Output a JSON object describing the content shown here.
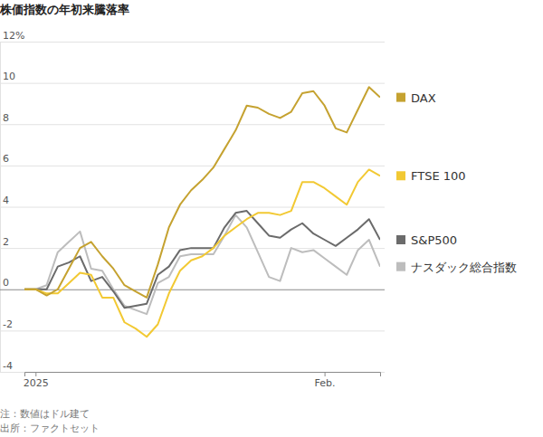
{
  "chart_data": {
    "type": "line",
    "title": "株価指数の年初来騰落率",
    "note": "注：数値はドル建て",
    "source": "出所：ファクトセット",
    "categories": [
      null,
      "2025",
      null,
      null,
      null,
      null,
      null,
      null,
      null,
      null,
      null,
      null,
      null,
      null,
      null,
      null,
      null,
      null,
      null,
      null,
      null,
      null,
      null,
      null,
      null,
      null,
      null,
      "Feb.",
      null,
      null,
      null,
      null,
      null
    ],
    "series": [
      {
        "name": "DAX",
        "color": "#c5a230",
        "values": [
          0,
          0,
          -0.3,
          0.0,
          1.0,
          2.0,
          2.3,
          1.6,
          1.0,
          0.2,
          -0.1,
          -0.4,
          1.2,
          3.0,
          4.1,
          4.8,
          5.3,
          5.9,
          6.8,
          7.7,
          8.9,
          8.8,
          8.5,
          8.3,
          8.6,
          9.5,
          9.6,
          8.9,
          7.8,
          7.6,
          8.7,
          9.8,
          9.3
        ]
      },
      {
        "name": "FTSE 100",
        "color": "#f2c933",
        "values": [
          0,
          0,
          -0.2,
          -0.2,
          0.3,
          0.8,
          0.7,
          -0.4,
          -0.4,
          -1.6,
          -1.9,
          -2.3,
          -1.7,
          -0.2,
          0.9,
          1.4,
          1.6,
          2.0,
          2.6,
          3.0,
          3.4,
          3.7,
          3.7,
          3.6,
          3.8,
          5.2,
          5.2,
          4.9,
          4.5,
          4.1,
          5.2,
          5.8,
          5.5
        ]
      },
      {
        "name": "S&P500",
        "color": "#6b6b6b",
        "values": [
          0,
          0,
          0,
          1.1,
          1.3,
          1.6,
          0.4,
          0.6,
          -0.1,
          -0.9,
          -0.8,
          -0.7,
          0.7,
          1.1,
          1.9,
          2.0,
          2.0,
          2.0,
          3.0,
          3.7,
          3.8,
          3.2,
          2.6,
          2.5,
          2.9,
          3.2,
          2.7,
          2.4,
          2.1,
          2.5,
          2.9,
          3.4,
          2.4
        ]
      },
      {
        "name": "ナスダック総合指数",
        "color": "#bdbdbd",
        "values": [
          0,
          0,
          0.2,
          1.8,
          2.3,
          2.8,
          1.0,
          0.9,
          0.0,
          -0.8,
          -1.0,
          -1.2,
          0.3,
          0.6,
          1.6,
          1.7,
          1.7,
          1.7,
          2.6,
          3.6,
          3.0,
          1.8,
          0.6,
          0.4,
          2.0,
          1.8,
          1.9,
          1.5,
          1.1,
          0.7,
          1.9,
          2.4,
          1.1
        ]
      }
    ],
    "ylim": [
      -4,
      12
    ],
    "yticks": [
      -4,
      -2,
      0,
      2,
      4,
      6,
      8,
      10,
      {
        "value": 12,
        "label": "12%"
      }
    ],
    "grid": true,
    "legend": "right"
  }
}
